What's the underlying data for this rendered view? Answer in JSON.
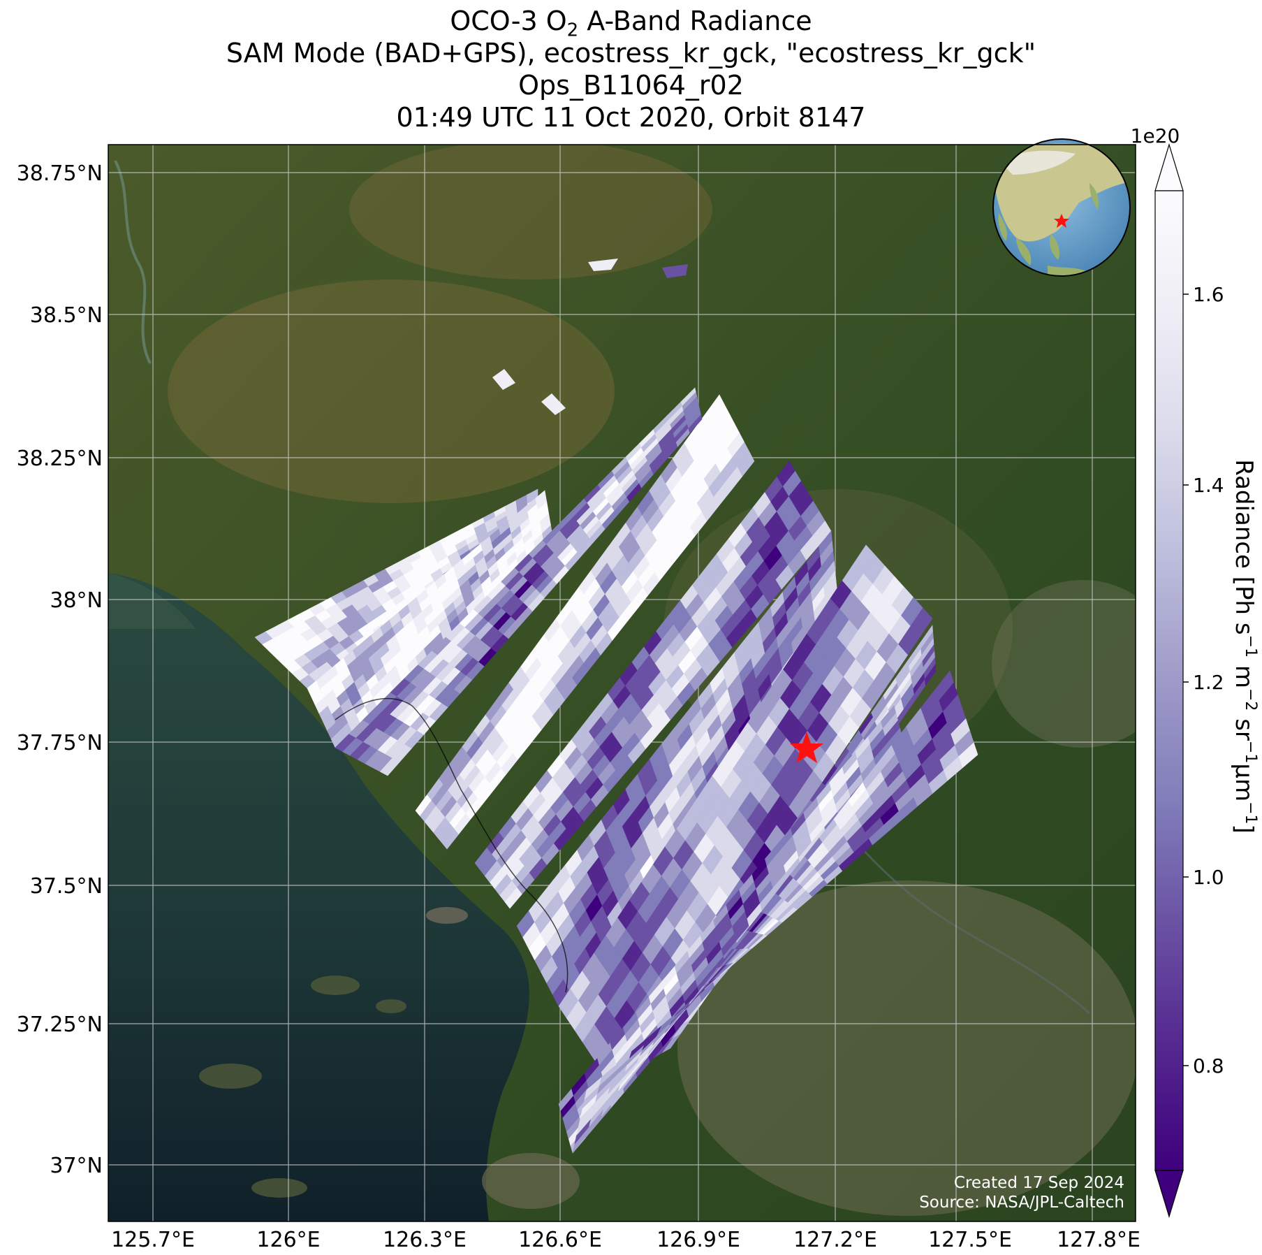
{
  "title": {
    "line1_prefix": "OCO-3 O",
    "line1_sub": "2",
    "line1_suffix": " A-Band Radiance",
    "line2": "SAM Mode (BAD+GPS), ecostress_kr_gck, \"ecostress_kr_gck\"",
    "line3": "Ops_B11064_r02",
    "line4": "01:49 UTC 11 Oct 2020, Orbit 8147"
  },
  "map": {
    "lat_ticks": [
      "38.75°N",
      "38.5°N",
      "38.25°N",
      "38°N",
      "37.75°N",
      "37.5°N",
      "37.25°N",
      "37°N"
    ],
    "lon_ticks": [
      "125.7°E",
      "126°E",
      "126.3°E",
      "126.6°E",
      "126.9°E",
      "127.2°E",
      "127.5°E",
      "127.8°E"
    ],
    "target_marker": "red-star",
    "inset": "globe-locator-east-asia",
    "credit_line1": "Created 17 Sep 2024",
    "credit_line2": "Source: NASA/JPL-Caltech"
  },
  "colorbar": {
    "exponent": "1e20",
    "ticks": [
      "0.8",
      "1.0",
      "1.2",
      "1.4",
      "1.6"
    ],
    "label_prefix": "Radiance [Ph s",
    "label_s_exp": "−1",
    "label_m": " m",
    "label_m_exp": "−2",
    "label_sr": " sr",
    "label_sr_exp": "−1",
    "label_mu": "μm",
    "label_mu_exp": "−1",
    "label_suffix": "]",
    "cmap_colors": [
      "#3f007d",
      "#54278f",
      "#6a51a3",
      "#807dba",
      "#9e9ac8",
      "#bcbddc",
      "#dadaeb",
      "#efedf5",
      "#fcfbfd"
    ]
  }
}
